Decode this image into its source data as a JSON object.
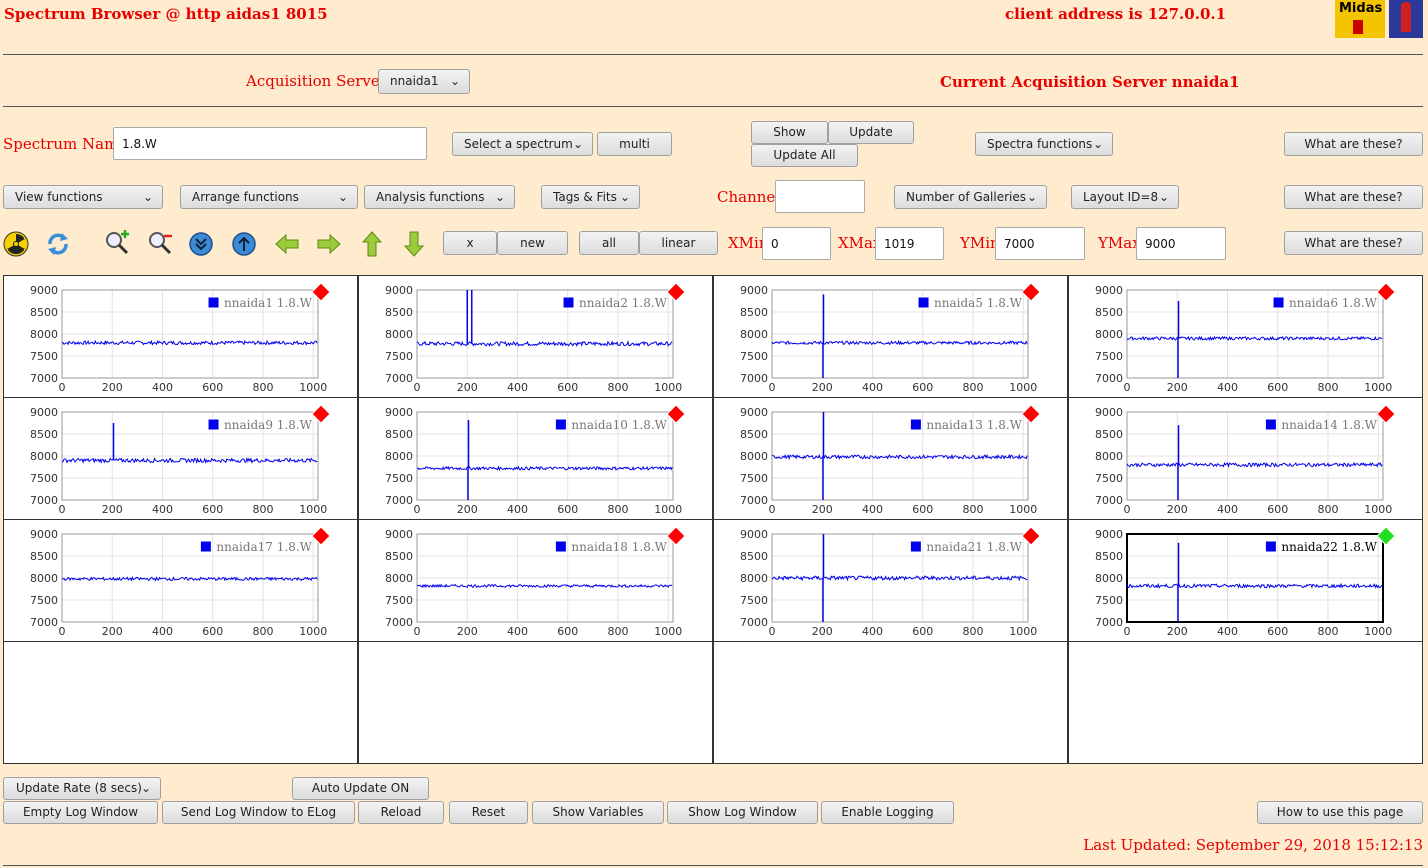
{
  "header": {
    "title": "Spectrum Browser @ http aidas1 8015",
    "client_address": "client address is 127.0.0.1",
    "logo_text": "Midas"
  },
  "acquisition": {
    "label": "Acquisition Servers",
    "selected": "nnaida1",
    "current": "Current Acquisition Server nnaida1"
  },
  "spectrum": {
    "name_label": "Spectrum Name:",
    "name_value": "1.8.W",
    "select_label": "Select a spectrum",
    "multi_label": "multi",
    "show_label": "Show",
    "update_label": "Update",
    "update_all_label": "Update All",
    "spectra_functions": "Spectra functions",
    "what_label": "What are these?"
  },
  "functions": {
    "view": "View functions",
    "arrange": "Arrange functions",
    "analysis": "Analysis functions",
    "tags": "Tags & Fits",
    "channel_label": "Channel:",
    "channel_value": "",
    "galleries": "Number of Galleries",
    "layout": "Layout ID=8",
    "what_label": "What are these?"
  },
  "toolbar": {
    "icons": [
      "radiation-icon",
      "refresh-icon",
      "zoom-in-icon",
      "zoom-out-icon",
      "scroll-down-icon",
      "scroll-up-icon",
      "left-arrow-icon",
      "right-arrow-icon",
      "up-arrow-icon",
      "down-arrow-icon"
    ],
    "x_label": "x",
    "new_label": "new",
    "all_label": "all",
    "linear_label": "linear",
    "xmin_label": "XMin",
    "xmin_value": "0",
    "xmax_label": "XMax",
    "xmax_value": "1019",
    "ymin_label": "YMin",
    "ymin_value": "7000",
    "ymax_label": "YMax",
    "ymax_value": "9000",
    "what_label": "What are these?"
  },
  "colors": {
    "background": "#ffebcd",
    "accent_red": "#e60000",
    "trace_blue": "#0000ee",
    "marker_red": "#ff0000",
    "marker_green": "#22dd22"
  },
  "chart_data": [
    {
      "type": "line",
      "series": [
        {
          "name": "nnaida1 1.8.W",
          "baseline": 7800,
          "noise": 40,
          "spikes": []
        }
      ],
      "xlim": [
        0,
        1019
      ],
      "ylim": [
        7000,
        9000
      ],
      "xticks": [
        "0",
        "200",
        "400",
        "600",
        "800",
        "1000"
      ],
      "yticks": [
        "7000",
        "7500",
        "8000",
        "8500",
        "9000"
      ],
      "status": "red",
      "selected": false
    },
    {
      "type": "line",
      "series": [
        {
          "name": "nnaida2 1.8.W",
          "baseline": 7780,
          "noise": 45,
          "spikes": [
            {
              "x": 200,
              "y": 9000
            },
            {
              "x": 218,
              "y": 9000
            }
          ]
        }
      ],
      "xlim": [
        0,
        1019
      ],
      "ylim": [
        7000,
        9000
      ],
      "xticks": [
        "0",
        "200",
        "400",
        "600",
        "800",
        "1000"
      ],
      "yticks": [
        "7000",
        "7500",
        "8000",
        "8500",
        "9000"
      ],
      "status": "red",
      "selected": false
    },
    {
      "type": "line",
      "series": [
        {
          "name": "nnaida5 1.8.W",
          "baseline": 7800,
          "noise": 35,
          "spikes": [
            {
              "x": 205,
              "y": 8900
            },
            {
              "x": 203,
              "y": 7000
            }
          ]
        }
      ],
      "xlim": [
        0,
        1019
      ],
      "ylim": [
        7000,
        9000
      ],
      "xticks": [
        "0",
        "200",
        "400",
        "600",
        "800",
        "1000"
      ],
      "yticks": [
        "7000",
        "7500",
        "8000",
        "8500",
        "9000"
      ],
      "status": "red",
      "selected": false
    },
    {
      "type": "line",
      "series": [
        {
          "name": "nnaida6 1.8.W",
          "baseline": 7900,
          "noise": 35,
          "spikes": [
            {
              "x": 205,
              "y": 8750
            },
            {
              "x": 203,
              "y": 7000
            }
          ]
        }
      ],
      "xlim": [
        0,
        1019
      ],
      "ylim": [
        7000,
        9000
      ],
      "xticks": [
        "0",
        "200",
        "400",
        "600",
        "800",
        "1000"
      ],
      "yticks": [
        "7000",
        "7500",
        "8000",
        "8500",
        "9000"
      ],
      "status": "red",
      "selected": false
    },
    {
      "type": "line",
      "series": [
        {
          "name": "nnaida9 1.8.W",
          "baseline": 7900,
          "noise": 45,
          "spikes": [
            {
              "x": 205,
              "y": 8750
            }
          ]
        }
      ],
      "xlim": [
        0,
        1019
      ],
      "ylim": [
        7000,
        9000
      ],
      "xticks": [
        "0",
        "200",
        "400",
        "600",
        "800",
        "1000"
      ],
      "yticks": [
        "7000",
        "7500",
        "8000",
        "8500",
        "9000"
      ],
      "status": "red",
      "selected": false
    },
    {
      "type": "line",
      "series": [
        {
          "name": "nnaida10 1.8.W",
          "baseline": 7720,
          "noise": 35,
          "spikes": [
            {
              "x": 205,
              "y": 8820
            },
            {
              "x": 203,
              "y": 7000
            }
          ]
        }
      ],
      "xlim": [
        0,
        1019
      ],
      "ylim": [
        7000,
        9000
      ],
      "xticks": [
        "0",
        "200",
        "400",
        "600",
        "800",
        "1000"
      ],
      "yticks": [
        "7000",
        "7500",
        "8000",
        "8500",
        "9000"
      ],
      "status": "red",
      "selected": false
    },
    {
      "type": "line",
      "series": [
        {
          "name": "nnaida13 1.8.W",
          "baseline": 7980,
          "noise": 40,
          "spikes": [
            {
              "x": 205,
              "y": 9000
            },
            {
              "x": 203,
              "y": 7000
            }
          ]
        }
      ],
      "xlim": [
        0,
        1019
      ],
      "ylim": [
        7000,
        9000
      ],
      "xticks": [
        "0",
        "200",
        "400",
        "600",
        "800",
        "1000"
      ],
      "yticks": [
        "7000",
        "7500",
        "8000",
        "8500",
        "9000"
      ],
      "status": "red",
      "selected": false
    },
    {
      "type": "line",
      "series": [
        {
          "name": "nnaida14 1.8.W",
          "baseline": 7800,
          "noise": 40,
          "spikes": [
            {
              "x": 205,
              "y": 8700
            },
            {
              "x": 203,
              "y": 7000
            }
          ]
        }
      ],
      "xlim": [
        0,
        1019
      ],
      "ylim": [
        7000,
        9000
      ],
      "xticks": [
        "0",
        "200",
        "400",
        "600",
        "800",
        "1000"
      ],
      "yticks": [
        "7000",
        "7500",
        "8000",
        "8500",
        "9000"
      ],
      "status": "red",
      "selected": false
    },
    {
      "type": "line",
      "series": [
        {
          "name": "nnaida17 1.8.W",
          "baseline": 7980,
          "noise": 35,
          "spikes": []
        }
      ],
      "xlim": [
        0,
        1019
      ],
      "ylim": [
        7000,
        9000
      ],
      "xticks": [
        "0",
        "200",
        "400",
        "600",
        "800",
        "1000"
      ],
      "yticks": [
        "7000",
        "7500",
        "8000",
        "8500",
        "9000"
      ],
      "status": "red",
      "selected": false
    },
    {
      "type": "line",
      "series": [
        {
          "name": "nnaida18 1.8.W",
          "baseline": 7820,
          "noise": 30,
          "spikes": []
        }
      ],
      "xlim": [
        0,
        1019
      ],
      "ylim": [
        7000,
        9000
      ],
      "xticks": [
        "0",
        "200",
        "400",
        "600",
        "800",
        "1000"
      ],
      "yticks": [
        "7000",
        "7500",
        "8000",
        "8500",
        "9000"
      ],
      "status": "red",
      "selected": false
    },
    {
      "type": "line",
      "series": [
        {
          "name": "nnaida21 1.8.W",
          "baseline": 8000,
          "noise": 45,
          "spikes": [
            {
              "x": 205,
              "y": 9000
            },
            {
              "x": 203,
              "y": 7000
            }
          ]
        }
      ],
      "xlim": [
        0,
        1019
      ],
      "ylim": [
        7000,
        9000
      ],
      "xticks": [
        "0",
        "200",
        "400",
        "600",
        "800",
        "1000"
      ],
      "yticks": [
        "7000",
        "7500",
        "8000",
        "8500",
        "9000"
      ],
      "status": "red",
      "selected": false
    },
    {
      "type": "line",
      "series": [
        {
          "name": "nnaida22 1.8.W",
          "baseline": 7820,
          "noise": 40,
          "spikes": [
            {
              "x": 205,
              "y": 8800
            },
            {
              "x": 203,
              "y": 7000
            }
          ]
        }
      ],
      "xlim": [
        0,
        1019
      ],
      "ylim": [
        7000,
        9000
      ],
      "xticks": [
        "0",
        "200",
        "400",
        "600",
        "800",
        "1000"
      ],
      "yticks": [
        "7000",
        "7500",
        "8000",
        "8500",
        "9000"
      ],
      "status": "green",
      "selected": true
    }
  ],
  "footer": {
    "update_rate": "Update Rate (8 secs)",
    "auto_update": "Auto Update ON",
    "empty_log": "Empty Log Window",
    "send_log": "Send Log Window to ELog",
    "reload": "Reload",
    "reset": "Reset",
    "show_variables": "Show Variables",
    "show_log": "Show Log Window",
    "enable_logging": "Enable Logging",
    "how_to": "How to use this page",
    "last_updated": "Last Updated: September 29, 2018 15:12:13"
  }
}
